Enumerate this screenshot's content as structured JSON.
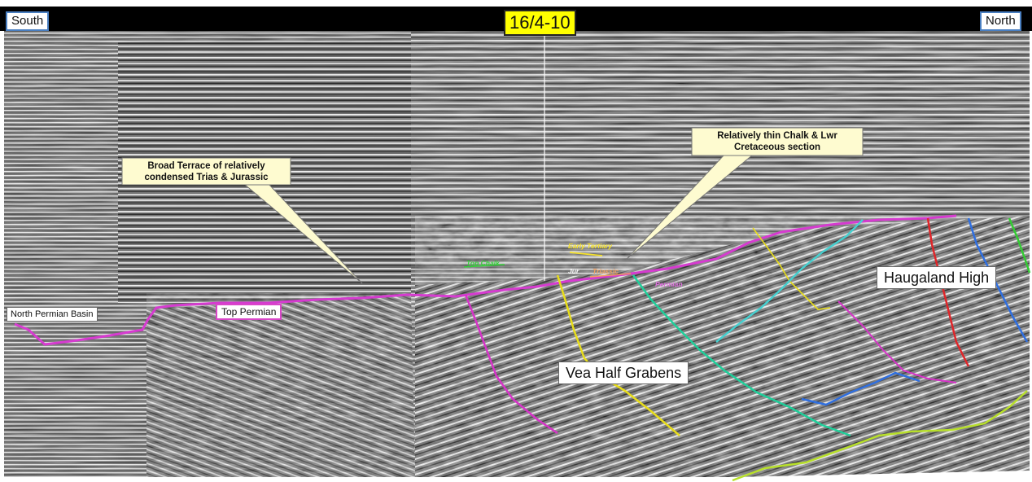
{
  "header": {
    "left_direction": "South",
    "right_direction": "North",
    "well_id": "16/4-10"
  },
  "callouts": {
    "terrace": "Broad Terrace of relatively condensed Trias & Jurassic",
    "chalk": "Relatively thin Chalk & Lwr Cretaceous section"
  },
  "labels": {
    "haugaland": "Haugaland High",
    "vea": "Vea Half Grabens",
    "north_permian": "North Permian Basin",
    "top_permian": "Top Permian"
  },
  "horizon_labels": {
    "early_tertiary": "Early Tertiary",
    "top_chalk": "Top Chalk",
    "jur": "Jur",
    "triassic": "Triassic",
    "permian": "Permian"
  },
  "colors": {
    "top_permian": "#d63bd0",
    "early_tertiary": "#f5e12a",
    "top_chalk": "#35d23a",
    "triassic": "#f0a060",
    "permian": "#e070e0",
    "fault_magenta": "#d633c8",
    "fault_yellow": "#e8dd1a",
    "fault_teal": "#1fcf9a",
    "fault_cyan": "#46d0d0",
    "fault_red": "#e0262a",
    "fault_blue": "#2f6fe0",
    "fault_green": "#33cc33",
    "fault_lime": "#b8e02a",
    "callout_fill": "#fefbd0"
  }
}
